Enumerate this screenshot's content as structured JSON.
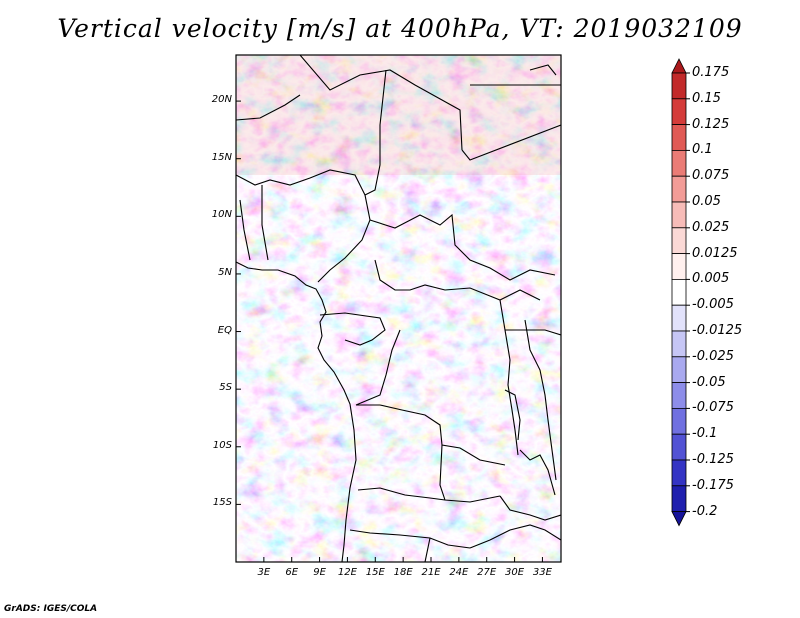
{
  "title": "Vertical velocity [m/s] at 400hPa, VT: 2019032109",
  "credit": "GrADS: IGES/COLA",
  "map": {
    "lon_range": [
      0,
      35
    ],
    "lat_range": [
      -20,
      24
    ],
    "lat_labels": [
      "20N",
      "15N",
      "10N",
      "5N",
      "EQ",
      "5S",
      "10S",
      "15S"
    ],
    "lat_values": [
      20,
      15,
      10,
      5,
      0,
      -5,
      -10,
      -15
    ],
    "lon_labels": [
      "3E",
      "6E",
      "9E",
      "12E",
      "15E",
      "18E",
      "21E",
      "24E",
      "27E",
      "30E",
      "33E"
    ],
    "lon_values": [
      3,
      6,
      9,
      12,
      15,
      18,
      21,
      24,
      27,
      30,
      33
    ]
  },
  "colorbar": {
    "labels": [
      "0.175",
      "0.15",
      "0.125",
      "0.1",
      "0.075",
      "0.05",
      "0.025",
      "0.0125",
      "0.005",
      "-0.005",
      "-0.0125",
      "-0.025",
      "-0.05",
      "-0.075",
      "-0.1",
      "-0.125",
      "-0.175",
      "-0.2"
    ],
    "colors": [
      "#ab1a1c",
      "#c22a2a",
      "#d43c3a",
      "#e05a55",
      "#ea7c76",
      "#f29c97",
      "#f7bcb8",
      "#fbd9d6",
      "#fff0ee",
      "#ffffff",
      "#e2e2fb",
      "#c6c6f5",
      "#a9a9ef",
      "#8d8de9",
      "#7070e0",
      "#5252d4",
      "#3434c4",
      "#1f1fae",
      "#16149a"
    ]
  }
}
